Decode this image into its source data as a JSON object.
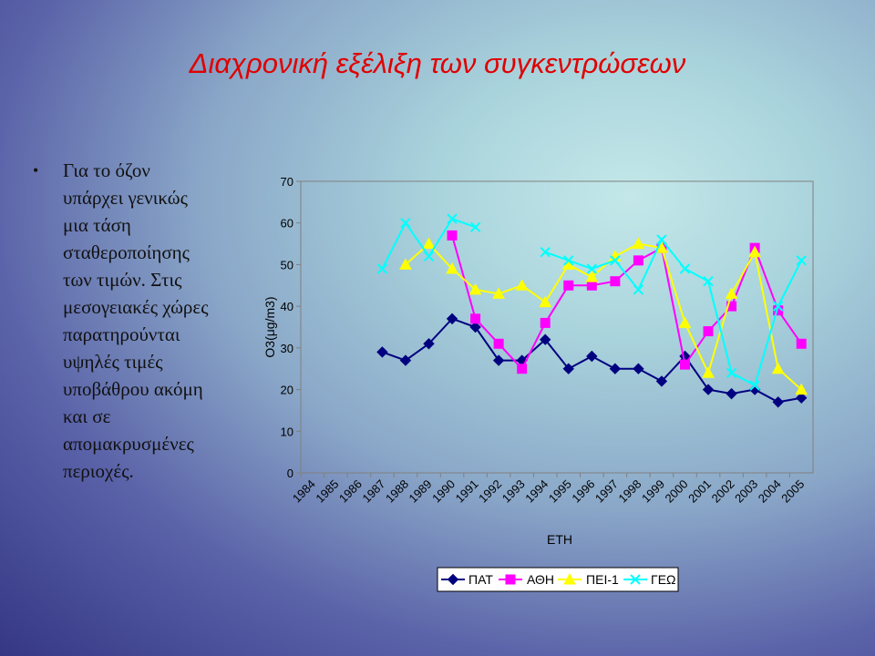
{
  "slide": {
    "title": "Διαχρονική εξέλιξη των συγκεντρώσεων",
    "bullet_lines": [
      "Για το όζον",
      "υπάρχει γενικώς",
      "μια τάση",
      "σταθεροποίησης",
      "των τιμών. Στις",
      "μεσογειακές χώρες",
      "παρατηρούνται",
      "υψηλές τιμές",
      "υποβάθρου ακόμη",
      "και σε",
      "απομακρυσμένες",
      "περιοχές."
    ],
    "bullet_symbol": "•"
  },
  "chart_data": {
    "type": "line",
    "xlabel": "ΕΤΗ",
    "ylabel": "O3(μg/m3)",
    "ylim": [
      0,
      70
    ],
    "yticks": [
      0,
      10,
      20,
      30,
      40,
      50,
      60,
      70
    ],
    "categories": [
      "1984",
      "1985",
      "1986",
      "1987",
      "1988",
      "1989",
      "1990",
      "1991",
      "1992",
      "1993",
      "1994",
      "1995",
      "1996",
      "1997",
      "1998",
      "1999",
      "2000",
      "2001",
      "2002",
      "2003",
      "2004",
      "2005"
    ],
    "grid": false,
    "legend_position": "bottom",
    "series": [
      {
        "name": "ΠΑΤ",
        "color": "#000080",
        "marker": "diamond",
        "values": [
          null,
          null,
          null,
          29,
          27,
          31,
          37,
          35,
          27,
          27,
          32,
          25,
          28,
          25,
          25,
          22,
          28,
          20,
          19,
          20,
          17,
          18
        ]
      },
      {
        "name": "ΑΘΗ",
        "color": "#ff00ff",
        "marker": "square",
        "values": [
          null,
          null,
          null,
          null,
          null,
          null,
          57,
          37,
          31,
          25,
          36,
          45,
          45,
          46,
          51,
          54,
          26,
          34,
          40,
          54,
          39,
          31
        ]
      },
      {
        "name": "ΠΕΙ-1",
        "color": "#ffff00",
        "marker": "triangle",
        "values": [
          null,
          null,
          null,
          null,
          50,
          55,
          49,
          44,
          43,
          45,
          41,
          50,
          47,
          52,
          55,
          54,
          36,
          24,
          43,
          53,
          25,
          20
        ]
      },
      {
        "name": "ΓΕΩ",
        "color": "#00ffff",
        "marker": "x",
        "values": [
          null,
          null,
          null,
          49,
          60,
          52,
          61,
          59,
          null,
          null,
          53,
          51,
          49,
          51,
          44,
          56,
          49,
          46,
          24,
          21,
          40,
          51
        ]
      }
    ]
  }
}
